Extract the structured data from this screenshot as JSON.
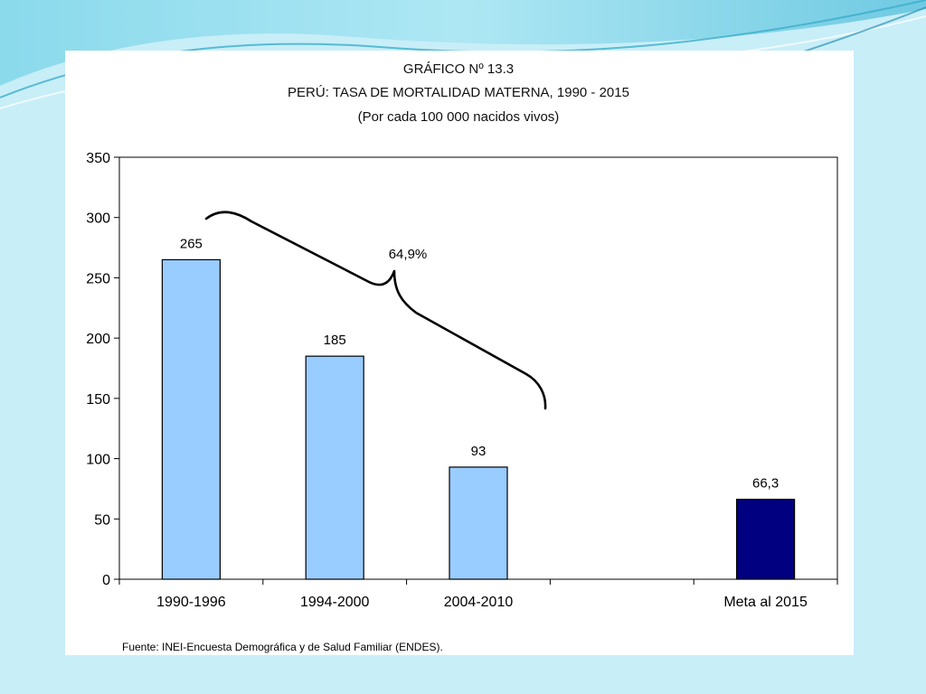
{
  "figure": {
    "title_line1": "GRÁFICO Nº 13.3",
    "title_line2": "PERÚ: TASA DE MORTALIDAD MATERNA, 1990 - 2015",
    "title_line3": "(Por cada 100 000 nacidos vivos)",
    "source": "Fuente: INEI-Encuesta Demográfica y de Salud Familiar (ENDES)."
  },
  "colors": {
    "slide_background": "#c8eef8",
    "bar_fill": "#99ccff",
    "target_bar_fill": "#000080",
    "bar_stroke": "#000000"
  },
  "chart_data": {
    "type": "bar",
    "title": "PERÚ: TASA DE MORTALIDAD MATERNA, 1990 - 2015",
    "subtitle": "(Por cada 100 000 nacidos vivos)",
    "categories": [
      "1990-1996",
      "1994-2000",
      "2004-2010",
      "",
      "Meta al 2015"
    ],
    "values": [
      265,
      185,
      93,
      null,
      66.3
    ],
    "data_labels": [
      "265",
      "185",
      "93",
      "",
      "66,3"
    ],
    "bar_colors": [
      "#99ccff",
      "#99ccff",
      "#99ccff",
      null,
      "#000080"
    ],
    "y_ticks": [
      0,
      50,
      100,
      150,
      200,
      250,
      300,
      350
    ],
    "ylim": [
      0,
      350
    ],
    "xlabel": "",
    "ylabel": "",
    "grid": false,
    "legend": "none",
    "annotation": {
      "text": "64,9%",
      "type": "brace",
      "spans": [
        "1990-1996",
        "2004-2010"
      ]
    }
  }
}
